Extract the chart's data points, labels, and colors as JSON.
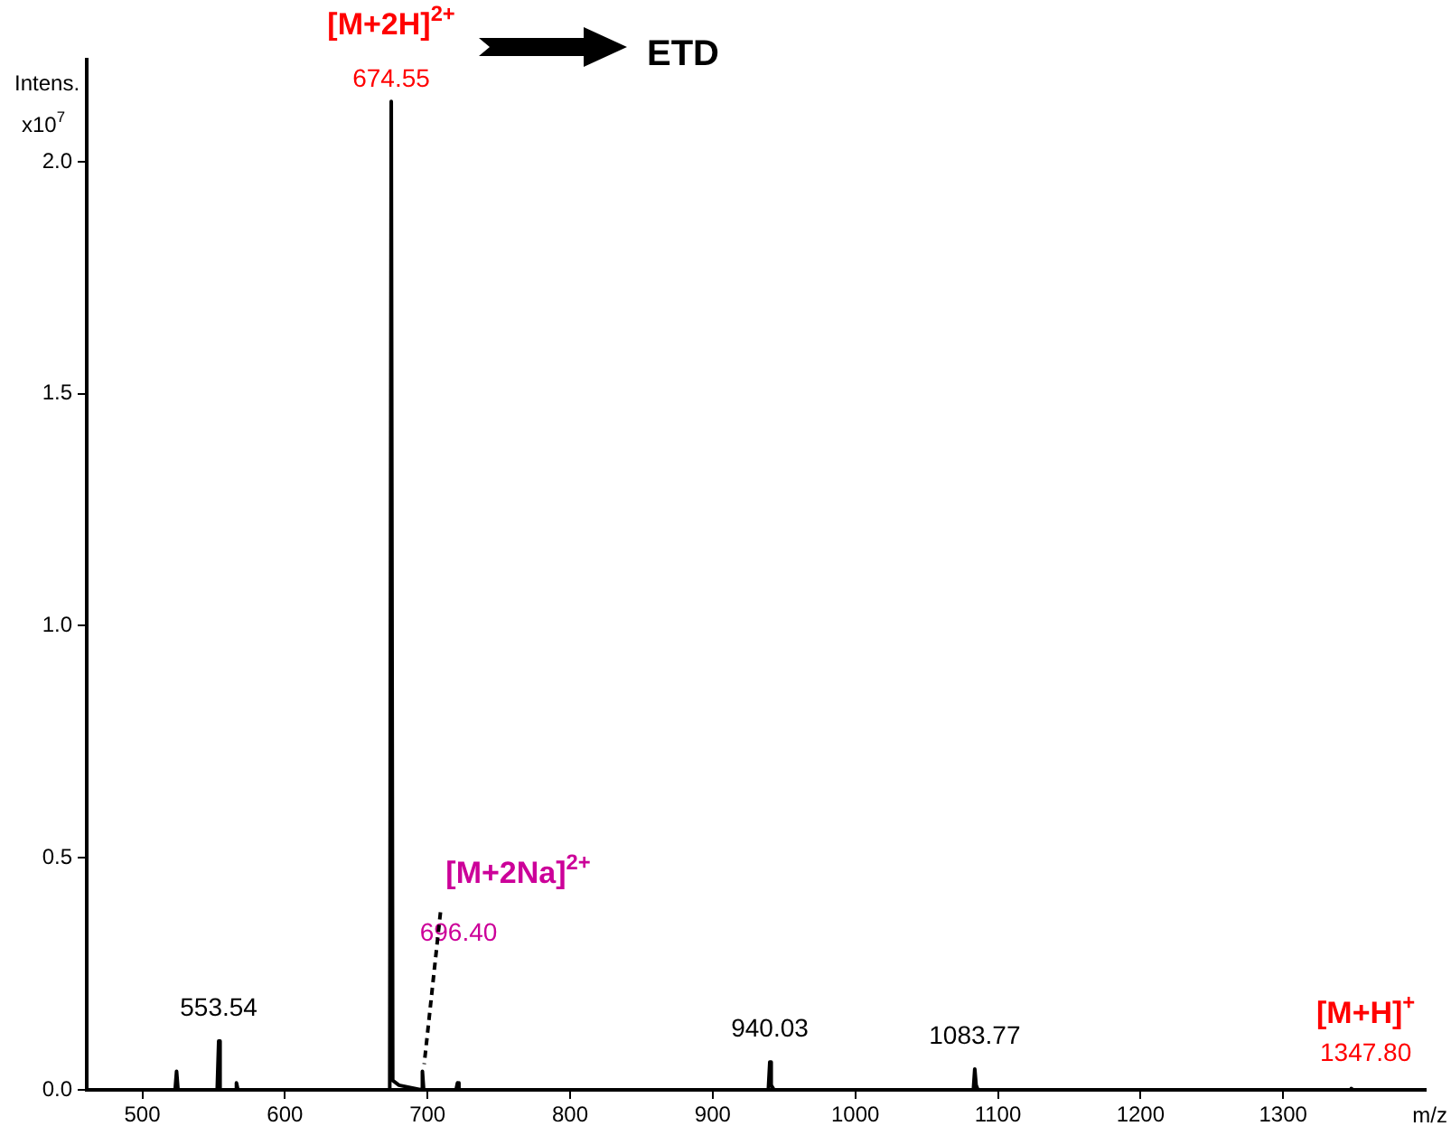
{
  "chart_data": {
    "type": "line",
    "xlabel": "m/z",
    "ylabel": "Intens. x10$^{7}$",
    "x": [
      461,
      523,
      524,
      525,
      552.5,
      553.54,
      554.5,
      565,
      566,
      567,
      673.5,
      674.55,
      675.6,
      680,
      695.5,
      696.4,
      697.3,
      720,
      721,
      722,
      939,
      940.03,
      941,
      943,
      1082.8,
      1083.77,
      1084.7,
      1086,
      1346.8,
      1347.8,
      1348.8,
      1400
    ],
    "series": [
      {
        "color": "#000000",
        "values": [
          0,
          0,
          0.04,
          0,
          0,
          0.105,
          0,
          0,
          0.015,
          0,
          0,
          2.13,
          0.02,
          0.01,
          0,
          0.04,
          0,
          0,
          0.015,
          0,
          0,
          0.06,
          0.01,
          0,
          0,
          0.045,
          0.01,
          0,
          0,
          0.003,
          0,
          0
        ]
      }
    ],
    "xlim": [
      461,
      1400
    ],
    "xticks": [
      500,
      600,
      700,
      800,
      900,
      1000,
      1100,
      1200,
      1300
    ],
    "ylim": [
      0,
      2.22
    ],
    "yticks": [
      {
        "value": 0,
        "label": "0.0"
      },
      {
        "value": 0.5,
        "label": "0.5"
      },
      {
        "value": 1,
        "label": "1.0"
      },
      {
        "value": 1.5,
        "label": "1.5"
      },
      {
        "value": 2,
        "label": "2.0"
      }
    ],
    "grid": false,
    "legend": false,
    "marker": "none",
    "line_style": "solid",
    "annotations": [
      {
        "text": "[M+2H]$^{2+}$",
        "x": 674.55,
        "y": 2.13
      },
      {
        "text": "674.55",
        "x": 674.55,
        "y": 2.13
      },
      "ETD",
      {
        "text": "[M+2Na]$^{2+}$",
        "x": 696.4,
        "y": 0.04
      },
      {
        "text": "696.40",
        "x": 696.4,
        "y": 0.04
      },
      {
        "text": "553.54",
        "x": 553.54,
        "y": 0.105
      },
      {
        "text": "940.03",
        "x": 940.03,
        "y": 0.06
      },
      {
        "text": "1083.77",
        "x": 1083.77,
        "y": 0.045
      },
      {
        "text": "[M+H]$^{+}$",
        "x": 1347.8,
        "y": 0.003
      },
      {
        "text": "1347.80",
        "x": 1347.8,
        "y": 0.003
      }
    ]
  }
}
